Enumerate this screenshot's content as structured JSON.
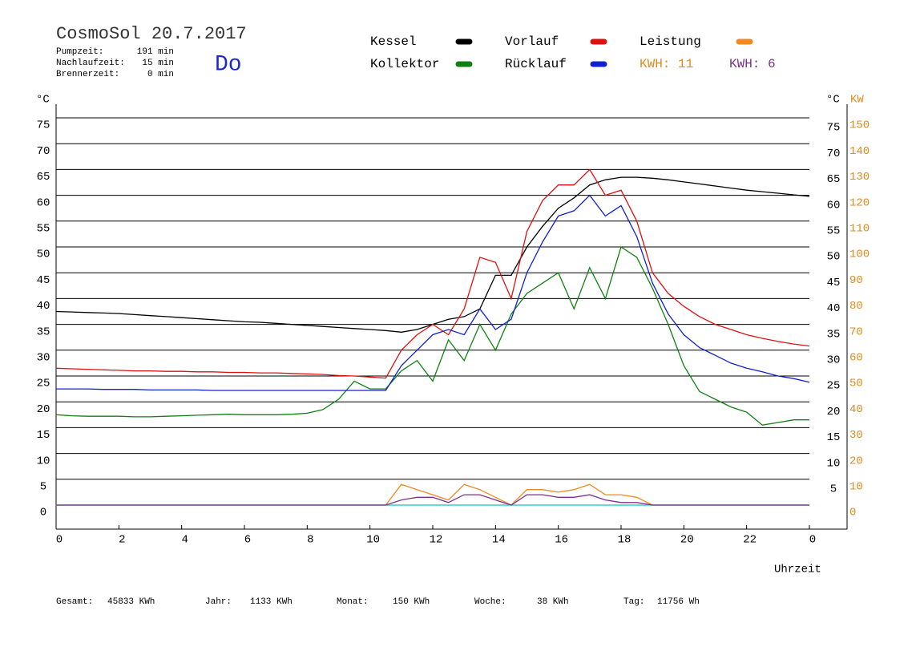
{
  "chart_data": {
    "type": "line",
    "title": "CosmoSol 20.7.2017",
    "day": "Do",
    "info": [
      {
        "label": "Pumpzeit:",
        "value": "191 min"
      },
      {
        "label": "Nachlaufzeit:",
        "value": "15 min"
      },
      {
        "label": "Brennerzeit:",
        "value": "0 min"
      }
    ],
    "y_label": "°C",
    "y_right_label": "°C",
    "y2_label": "KW",
    "x_label": "Uhrzeit",
    "kwh_labels": [
      {
        "text": "KWH: 11",
        "color": "#e08a1e"
      },
      {
        "text": "KWH: 6",
        "color": "#7f2f8f"
      }
    ],
    "footer": [
      {
        "label": "Gesamt:",
        "value": "45833 KWh"
      },
      {
        "label": "Jahr:",
        "value": "1133 KWh"
      },
      {
        "label": "Monat:",
        "value": "150 KWh"
      },
      {
        "label": "Woche:",
        "value": "38 KWh"
      },
      {
        "label": "Tag:",
        "value": "11756 Wh"
      }
    ],
    "x": [
      0,
      0.5,
      1,
      1.5,
      2,
      2.5,
      3,
      3.5,
      4,
      4.5,
      5,
      5.5,
      6,
      6.5,
      7,
      7.5,
      8,
      8.5,
      9,
      9.5,
      10,
      10.5,
      11,
      11.5,
      12,
      12.5,
      13,
      13.5,
      14,
      14.5,
      15,
      15.5,
      16,
      16.5,
      17,
      17.5,
      18,
      18.5,
      19,
      19.5,
      20,
      20.5,
      21,
      21.5,
      22,
      22.5,
      23,
      23.5,
      24
    ],
    "xlim": [
      0,
      25.2
    ],
    "xticks": [
      0,
      2,
      4,
      6,
      8,
      10,
      12,
      14,
      16,
      18,
      20,
      22,
      {
        "value": 24,
        "label": "0"
      }
    ],
    "ylim": [
      0,
      75
    ],
    "yticks": [
      0,
      5,
      10,
      15,
      20,
      25,
      30,
      35,
      40,
      45,
      50,
      55,
      60,
      65,
      70,
      75
    ],
    "yticks_right": [
      5,
      10,
      15,
      20,
      25,
      30,
      35,
      40,
      45,
      50,
      55,
      60,
      65,
      70,
      75
    ],
    "y2lim": [
      0,
      150
    ],
    "y2ticks": [
      0,
      10,
      20,
      30,
      40,
      50,
      60,
      70,
      80,
      90,
      100,
      110,
      120,
      130,
      140,
      150
    ],
    "grid": true,
    "series": [
      {
        "name": "Kessel",
        "color": "#000000",
        "values": [
          37.5,
          37.4,
          37.3,
          37.2,
          37.1,
          36.9,
          36.7,
          36.5,
          36.3,
          36.1,
          35.9,
          35.7,
          35.5,
          35.4,
          35.2,
          35,
          34.8,
          34.6,
          34.4,
          34.2,
          34,
          33.8,
          33.5,
          34,
          35,
          36,
          36.5,
          38,
          44.5,
          44.5,
          50,
          54,
          57.5,
          59.5,
          62,
          63,
          63.5,
          63.5,
          63.3,
          63,
          62.6,
          62.2,
          61.8,
          61.4,
          61,
          60.7,
          60.4,
          60.1,
          59.8
        ]
      },
      {
        "name": "Vorlauf",
        "color": "#e01010",
        "values": [
          26.5,
          26.4,
          26.3,
          26.2,
          26.1,
          26,
          26,
          25.9,
          25.9,
          25.8,
          25.8,
          25.7,
          25.7,
          25.6,
          25.6,
          25.5,
          25.4,
          25.3,
          25.1,
          25,
          24.8,
          24.6,
          30,
          33,
          35,
          33,
          38,
          48,
          47,
          40,
          53,
          59,
          62,
          62,
          65,
          60,
          61,
          55,
          45,
          41,
          38.5,
          36.5,
          35,
          34,
          33,
          32.3,
          31.7,
          31.2,
          30.8
        ]
      },
      {
        "name": "Leistung",
        "color": "#f08a1e",
        "axis": "y2",
        "values": [
          0,
          0,
          0,
          0,
          0,
          0,
          0,
          0,
          0,
          0,
          0,
          0,
          0,
          0,
          0,
          0,
          0,
          0,
          0,
          0,
          0,
          0,
          8,
          6,
          4,
          2,
          8,
          6,
          3,
          0,
          6,
          6,
          5,
          6,
          8,
          4,
          4,
          3,
          0,
          0,
          0,
          0,
          0,
          0,
          0,
          0,
          0,
          0,
          0
        ]
      },
      {
        "name": "Kollektor",
        "color": "#108010",
        "values": [
          17.5,
          17.3,
          17.2,
          17.2,
          17.2,
          17.1,
          17.1,
          17.2,
          17.3,
          17.4,
          17.5,
          17.6,
          17.5,
          17.5,
          17.5,
          17.6,
          17.8,
          18.5,
          20.5,
          24,
          22.5,
          22.5,
          26,
          28,
          24,
          32,
          28,
          35,
          30,
          37,
          41,
          43,
          45,
          38,
          46,
          40,
          50,
          48,
          42,
          35,
          27,
          22,
          20.5,
          19,
          18,
          15.5,
          16,
          16.5,
          16.5
        ]
      },
      {
        "name": "Rücklauf",
        "color": "#1020d0",
        "values": [
          22.5,
          22.5,
          22.5,
          22.4,
          22.4,
          22.4,
          22.3,
          22.3,
          22.3,
          22.3,
          22.2,
          22.2,
          22.2,
          22.2,
          22.2,
          22.2,
          22.2,
          22.2,
          22.2,
          22.2,
          22.2,
          22.2,
          27,
          30,
          33,
          34,
          33,
          38,
          34,
          36,
          45,
          51,
          56,
          57,
          60,
          56,
          58,
          52,
          43,
          37,
          33,
          30.5,
          29,
          27.5,
          26.5,
          25.8,
          25,
          24.5,
          23.8
        ]
      },
      {
        "color": "#7f2f8f",
        "axis": "y2",
        "values": [
          0,
          0,
          0,
          0,
          0,
          0,
          0,
          0,
          0,
          0,
          0,
          0,
          0,
          0,
          0,
          0,
          0,
          0,
          0,
          0,
          0,
          0,
          2,
          3,
          3,
          1,
          4,
          4,
          2,
          0,
          4,
          4,
          3,
          3,
          4,
          2,
          1,
          1,
          0,
          0,
          0,
          0,
          0,
          0,
          0,
          0,
          0,
          0,
          0
        ]
      }
    ]
  }
}
